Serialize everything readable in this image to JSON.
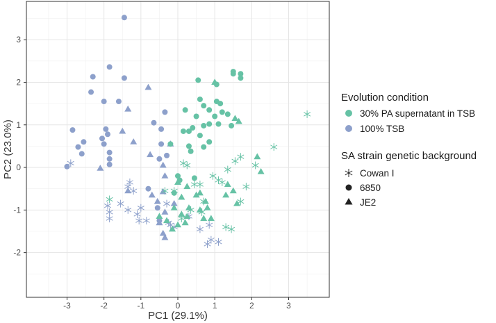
{
  "chart_data": {
    "type": "scatter",
    "xlabel": "PC1 (29.1%)",
    "ylabel": "PC2 (23.0%)",
    "xlim": [
      -4.1,
      4.1
    ],
    "ylim": [
      -3.05,
      3.9
    ],
    "xticks": [
      -3,
      -2,
      -1,
      0,
      1,
      2,
      3
    ],
    "yticks": [
      -2,
      -1,
      0,
      1,
      2,
      3
    ],
    "grid": true,
    "colors": {
      "30% PA supernatant in TSB": "#66c2a5",
      "100% TSB": "#8da0cb"
    },
    "legend": {
      "position": "right",
      "color": {
        "title": "Evolution condition",
        "entries": [
          {
            "label": "30% PA supernatant in TSB",
            "color": "#66c2a5"
          },
          {
            "label": "100% TSB",
            "color": "#8da0cb"
          }
        ]
      },
      "shape": {
        "title": "SA strain genetic background",
        "entries": [
          {
            "label": "Cowan I",
            "shape": "asterisk"
          },
          {
            "label": "6850",
            "shape": "circle"
          },
          {
            "label": "JE2",
            "shape": "triangle"
          }
        ]
      }
    },
    "series": [
      {
        "condition": "100% TSB",
        "strain": "6850",
        "shape": "circle",
        "color": "#8da0cb",
        "points": [
          [
            -1.45,
            3.52
          ],
          [
            -2.3,
            2.13
          ],
          [
            -1.85,
            2.36
          ],
          [
            -1.45,
            2.1
          ],
          [
            -2.35,
            1.77
          ],
          [
            -2.0,
            1.55
          ],
          [
            -1.6,
            1.55
          ],
          [
            -0.35,
            1.3
          ],
          [
            -1.95,
            0.9
          ],
          [
            -1.9,
            0.78
          ],
          [
            -0.65,
            1.05
          ],
          [
            -0.45,
            0.9
          ],
          [
            -2.85,
            0.88
          ],
          [
            -2.05,
            0.68
          ],
          [
            -2.55,
            0.6
          ],
          [
            -2.0,
            0.55
          ],
          [
            -0.45,
            0.55
          ],
          [
            -2.7,
            0.48
          ],
          [
            -1.85,
            0.35
          ],
          [
            -2.6,
            0.32
          ],
          [
            -1.85,
            0.2
          ],
          [
            -0.3,
            0.28
          ],
          [
            -0.5,
            0.2
          ],
          [
            -3.0,
            0.02
          ],
          [
            -1.85,
            0.07
          ],
          [
            -0.8,
            -0.5
          ],
          [
            -0.55,
            -0.95
          ],
          [
            -0.5,
            -1.25
          ]
        ]
      },
      {
        "condition": "100% TSB",
        "strain": "JE2",
        "shape": "triangle",
        "color": "#8da0cb",
        "points": [
          [
            -0.8,
            1.88
          ],
          [
            -1.35,
            1.37
          ],
          [
            -1.5,
            0.85
          ],
          [
            -1.2,
            0.6
          ],
          [
            -0.2,
            0.55
          ],
          [
            -0.75,
            0.3
          ],
          [
            -0.4,
            0.05
          ],
          [
            -2.1,
            -0.02
          ],
          [
            -0.35,
            -0.2
          ],
          [
            -0.4,
            -0.57
          ],
          [
            -1.35,
            -0.55
          ],
          [
            -0.7,
            -0.65
          ],
          [
            -0.55,
            -0.8
          ],
          [
            -0.1,
            -0.85
          ],
          [
            -0.35,
            -1.05
          ],
          [
            -0.5,
            -1.3
          ],
          [
            -0.4,
            -1.55
          ],
          [
            -0.35,
            -1.65
          ]
        ]
      },
      {
        "condition": "100% TSB",
        "strain": "Cowan I",
        "shape": "asterisk",
        "color": "#8da0cb",
        "points": [
          [
            -2.9,
            0.1
          ],
          [
            -1.3,
            -0.35
          ],
          [
            -1.35,
            -0.45
          ],
          [
            -1.2,
            -0.55
          ],
          [
            -1.55,
            -0.85
          ],
          [
            -1.9,
            -0.9
          ],
          [
            -1.0,
            -0.95
          ],
          [
            -1.35,
            -1.0
          ],
          [
            -1.85,
            -1.05
          ],
          [
            -1.1,
            -1.1
          ],
          [
            -1.85,
            -1.2
          ],
          [
            -0.3,
            -0.85
          ],
          [
            -0.85,
            -1.25
          ],
          [
            -1.05,
            -1.25
          ],
          [
            -0.25,
            -1.3
          ],
          [
            -0.2,
            -1.35
          ],
          [
            -0.1,
            -1.4
          ],
          [
            0.3,
            -1.15
          ],
          [
            0.6,
            -1.45
          ],
          [
            0.85,
            -1.35
          ],
          [
            0.9,
            -1.7
          ],
          [
            1.1,
            -1.75
          ],
          [
            0.8,
            -1.8
          ]
        ]
      },
      {
        "condition": "30% PA supernatant in TSB",
        "strain": "6850",
        "shape": "circle",
        "color": "#66c2a5",
        "points": [
          [
            1.5,
            2.25
          ],
          [
            1.5,
            2.2
          ],
          [
            1.7,
            2.2
          ],
          [
            1.7,
            2.1
          ],
          [
            0.55,
            2.05
          ],
          [
            1.05,
            1.95
          ],
          [
            0.6,
            1.6
          ],
          [
            1.05,
            1.55
          ],
          [
            1.15,
            1.5
          ],
          [
            0.7,
            1.45
          ],
          [
            0.85,
            1.35
          ],
          [
            1.2,
            1.3
          ],
          [
            1.35,
            1.25
          ],
          [
            0.5,
            1.2
          ],
          [
            0.2,
            1.35
          ],
          [
            1.0,
            1.2
          ],
          [
            0.85,
            1.02
          ],
          [
            1.1,
            1.02
          ],
          [
            0.7,
            0.98
          ],
          [
            0.4,
            0.93
          ],
          [
            0.3,
            0.85
          ],
          [
            0.15,
            0.85
          ],
          [
            1.45,
            0.98
          ],
          [
            0.6,
            0.75
          ],
          [
            0.85,
            0.6
          ],
          [
            0.3,
            0.5
          ],
          [
            0.7,
            0.48
          ],
          [
            0.35,
            0.38
          ],
          [
            -0.2,
            0.55
          ],
          [
            0.05,
            -0.3
          ],
          [
            0.0,
            -0.2
          ],
          [
            0.45,
            -0.25
          ],
          [
            -0.1,
            -0.6
          ]
        ]
      },
      {
        "condition": "30% PA supernatant in TSB",
        "strain": "JE2",
        "shape": "triangle",
        "color": "#66c2a5",
        "points": [
          [
            1.0,
            2.0
          ],
          [
            1.55,
            1.15
          ],
          [
            1.65,
            1.08
          ],
          [
            2.15,
            0.25
          ],
          [
            2.25,
            -0.1
          ],
          [
            0.0,
            -0.35
          ],
          [
            0.25,
            -0.45
          ],
          [
            1.35,
            -0.4
          ],
          [
            1.5,
            -0.55
          ],
          [
            0.6,
            -0.6
          ],
          [
            0.5,
            -0.65
          ],
          [
            0.1,
            -0.7
          ],
          [
            1.3,
            -0.65
          ],
          [
            0.75,
            -0.8
          ],
          [
            0.8,
            -0.95
          ],
          [
            0.3,
            -0.95
          ],
          [
            1.6,
            -0.85
          ],
          [
            0.6,
            -1.0
          ],
          [
            -0.1,
            -0.95
          ],
          [
            0.1,
            -1.1
          ],
          [
            0.25,
            -1.15
          ],
          [
            0.7,
            -1.2
          ],
          [
            0.9,
            -1.2
          ],
          [
            -0.5,
            -1.15
          ],
          [
            -0.3,
            -1.25
          ],
          [
            0.2,
            -1.3
          ],
          [
            -0.15,
            -1.45
          ],
          [
            0.0,
            -1.35
          ]
        ]
      },
      {
        "condition": "30% PA supernatant in TSB",
        "strain": "Cowan I",
        "shape": "asterisk",
        "color": "#66c2a5",
        "points": [
          [
            3.5,
            1.25
          ],
          [
            2.6,
            0.48
          ],
          [
            1.7,
            0.25
          ],
          [
            1.55,
            0.15
          ],
          [
            0.25,
            0.05
          ],
          [
            0.15,
            0.1
          ],
          [
            2.1,
            0.05
          ],
          [
            1.35,
            -0.05
          ],
          [
            0.95,
            -0.2
          ],
          [
            1.1,
            -0.3
          ],
          [
            1.2,
            -0.35
          ],
          [
            0.6,
            -0.4
          ],
          [
            0.45,
            -0.4
          ],
          [
            1.85,
            -0.45
          ],
          [
            -0.35,
            -0.55
          ],
          [
            -0.1,
            -0.55
          ],
          [
            -1.85,
            -0.75
          ],
          [
            0.7,
            -0.8
          ],
          [
            1.7,
            -0.8
          ],
          [
            0.35,
            -1.0
          ],
          [
            0.65,
            -1.05
          ],
          [
            0.1,
            -1.2
          ],
          [
            1.3,
            -1.4
          ],
          [
            1.45,
            -1.45
          ]
        ]
      }
    ]
  }
}
